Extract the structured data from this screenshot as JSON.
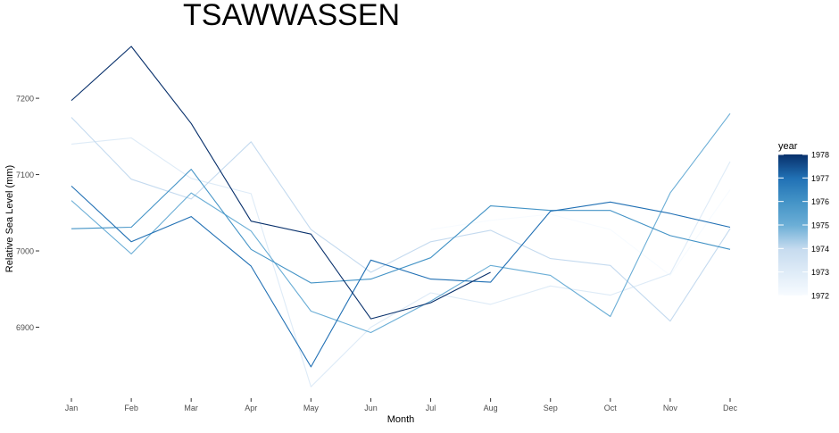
{
  "chart_data": {
    "type": "line",
    "title": "TSAWWASSEN",
    "xlabel": "Month",
    "ylabel": "Relative Sea Level (mm)",
    "categories": [
      "Jan",
      "Feb",
      "Mar",
      "Apr",
      "May",
      "Jun",
      "Jul",
      "Aug",
      "Sep",
      "Oct",
      "Nov",
      "Dec"
    ],
    "ylim": [
      6814,
      7282
    ],
    "yticks": [
      6900,
      7000,
      7100,
      7200
    ],
    "grid": false,
    "legend": {
      "title": "year",
      "placement": "right",
      "ticks": [
        "1978",
        "1977",
        "1976",
        "1975",
        "1974",
        "1973",
        "1972"
      ],
      "range": [
        1972,
        1978
      ],
      "color_low": "#f7fbff",
      "color_high": "#08306b"
    },
    "series": [
      {
        "year": 1972,
        "values": [
          null,
          null,
          null,
          null,
          null,
          null,
          7028,
          7040,
          7048,
          7028,
          6968,
          7080
        ]
      },
      {
        "year": 1973,
        "values": [
          7140,
          7148,
          7095,
          7075,
          6822,
          6900,
          6945,
          6930,
          6954,
          6942,
          6970,
          7117
        ]
      },
      {
        "year": 1974,
        "values": [
          7175,
          7094,
          7068,
          7143,
          7028,
          6972,
          7012,
          7027,
          6990,
          6981,
          6908,
          7029
        ]
      },
      {
        "year": 1975,
        "values": [
          7066,
          6996,
          7076,
          7026,
          6921,
          6893,
          6934,
          6981,
          6968,
          6914,
          7076,
          7180
        ]
      },
      {
        "year": 1976,
        "values": [
          7029,
          7031,
          7107,
          7002,
          6958,
          6963,
          6991,
          7059,
          7053,
          7053,
          7020,
          7002
        ]
      },
      {
        "year": 1977,
        "values": [
          7085,
          7012,
          7045,
          6980,
          6848,
          6988,
          6963,
          6959,
          7052,
          7064,
          7049,
          7031
        ]
      },
      {
        "year": 1978,
        "values": [
          7197,
          7268,
          7167,
          7039,
          7022,
          6911,
          6932,
          6972,
          null,
          null,
          null,
          null
        ]
      }
    ]
  }
}
